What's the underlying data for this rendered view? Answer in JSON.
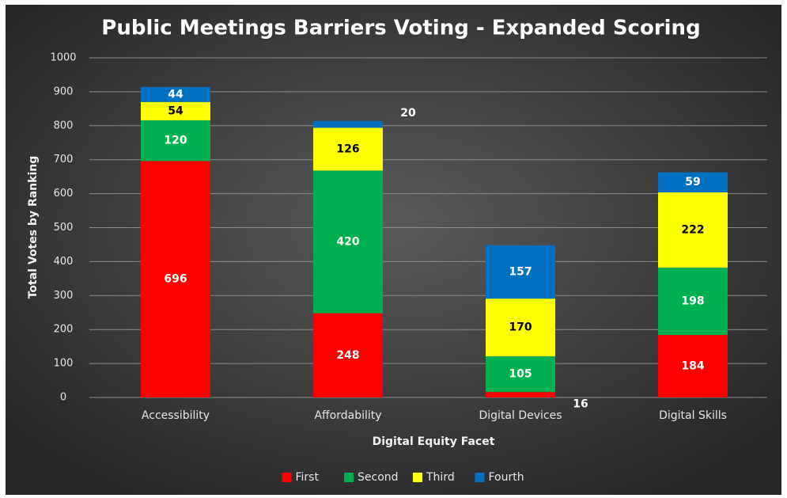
{
  "chart_data": {
    "type": "stacked_bar",
    "title": "Public Meetings Barriers Voting - Expanded Scoring",
    "x_label": "Digital Equity Facet",
    "y_label": "Total Votes by Ranking",
    "categories": [
      "Accessibility",
      "Affordability",
      "Digital Devices",
      "Digital Skills"
    ],
    "series": [
      {
        "name": "First",
        "color": "#ff0000",
        "values": [
          696,
          248,
          16,
          184
        ]
      },
      {
        "name": "Second",
        "color": "#00b050",
        "values": [
          120,
          420,
          105,
          198
        ]
      },
      {
        "name": "Third",
        "color": "#ffff00",
        "values": [
          54,
          126,
          170,
          222
        ]
      },
      {
        "name": "Fourth",
        "color": "#0070c0",
        "values": [
          44,
          20,
          157,
          59
        ]
      }
    ],
    "ylim": [
      0,
      1000
    ],
    "yticks": [
      0,
      100,
      200,
      300,
      400,
      500,
      600,
      700,
      800,
      900,
      1000
    ],
    "grid": true,
    "legend": "bottom"
  }
}
